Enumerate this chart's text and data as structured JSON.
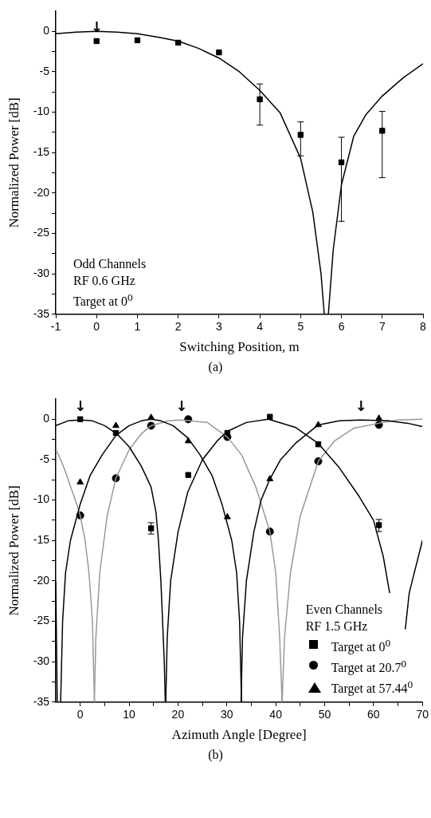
{
  "chart_data": [
    {
      "type": "scatter",
      "xlabel": "Switching Position, m",
      "ylabel": "Normalized Power [dB]",
      "xlim": [
        -1,
        8
      ],
      "xticks": [
        -1,
        0,
        1,
        2,
        3,
        4,
        5,
        6,
        7,
        8
      ],
      "ylim": [
        -35,
        2.5
      ],
      "yticks": [
        -35,
        {
          "value": -32.5,
          "label": null
        },
        -30,
        {
          "value": -27.5,
          "label": null
        },
        -25,
        {
          "value": -22.5,
          "label": null
        },
        -20,
        {
          "value": -17.5,
          "label": null
        },
        -15,
        {
          "value": -12.5,
          "label": null
        },
        -10,
        {
          "value": -7.5,
          "label": null
        },
        -5,
        {
          "value": -2.5,
          "label": null
        },
        0
      ],
      "series": [
        {
          "type": "line",
          "color": "#000000",
          "marker": "none",
          "x": [
            -1,
            -0.5,
            0,
            0.5,
            1,
            1.5,
            2,
            2.5,
            3,
            3.5,
            4,
            4.5,
            5,
            5.3,
            5.5,
            5.58,
            5.68,
            5.8,
            6,
            6.3,
            6.6,
            7,
            7.5,
            8
          ],
          "values": [
            -0.3,
            -0.1,
            0,
            -0.1,
            -0.3,
            -0.7,
            -1.2,
            -2.1,
            -3.3,
            -5,
            -7.3,
            -10.1,
            -15.7,
            -22.4,
            -30,
            -35,
            -35,
            -27,
            -19,
            -13,
            -10.3,
            -8,
            -5.8,
            -4
          ]
        },
        {
          "type": "scatter",
          "color": "#000000",
          "marker": "square",
          "x": [
            0,
            1,
            2,
            3,
            4,
            5,
            6,
            7
          ],
          "values": [
            -1.2,
            -1.1,
            -1.4,
            -2.6,
            -8.4,
            -12.8,
            -16.2,
            -12.3
          ],
          "errors": [
            null,
            null,
            null,
            null,
            [
              -11.6,
              -6.5
            ],
            [
              -15.4,
              -11.2
            ],
            [
              -23.5,
              -13.1
            ],
            [
              -18.1,
              -9.9
            ]
          ]
        }
      ],
      "annotations": [
        "Odd Channels",
        "RF 0.6 GHz",
        "Target at 0$^{0}$",
        {
          "text": "↓",
          "x": 0,
          "y": -1.2
        },
        "(a)"
      ]
    },
    {
      "type": "scatter",
      "xlabel": "Azimuth Angle [Degree]",
      "ylabel": "Normalized Power [dB]",
      "xlim": [
        -5,
        70
      ],
      "xticks": [
        0,
        {
          "value": 5,
          "label": null
        },
        10,
        {
          "value": 15,
          "label": null
        },
        20,
        {
          "value": 25,
          "label": null
        },
        30,
        {
          "value": 35,
          "label": null
        },
        40,
        {
          "value": 45,
          "label": null
        },
        50,
        {
          "value": 55,
          "label": null
        },
        60,
        {
          "value": 65,
          "label": null
        },
        70
      ],
      "ylim": [
        -35,
        2.5
      ],
      "yticks": [
        -35,
        {
          "value": -32.5,
          "label": null
        },
        -30,
        {
          "value": -27.5,
          "label": null
        },
        -25,
        {
          "value": -22.5,
          "label": null
        },
        -20,
        {
          "value": -17.5,
          "label": null
        },
        -15,
        {
          "value": -12.5,
          "label": null
        },
        -10,
        {
          "value": -7.5,
          "label": null
        },
        -5,
        {
          "value": -2.5,
          "label": null
        },
        0
      ],
      "legend": "bottom right",
      "series": [
        {
          "type": "line",
          "color": "#000000",
          "marker": "none",
          "x": [
            -5,
            -2.5,
            0,
            2.5,
            5,
            7.5,
            10,
            12.5,
            14.5,
            15.5,
            16,
            16.5,
            17.2,
            17.4
          ],
          "values": [
            -0.8,
            -0.2,
            -0.1,
            -0.2,
            -0.8,
            -1.8,
            -3.4,
            -5.8,
            -8.4,
            -11.5,
            -15,
            -20,
            -30,
            -35
          ]
        },
        {
          "type": "line",
          "color": "#000000",
          "marker": "none",
          "x": [
            -4,
            -3.6,
            -3,
            -2,
            0,
            2,
            4.5,
            7.3,
            10,
            12.5,
            14.5,
            16.5,
            19,
            22,
            24.5,
            27,
            29,
            31,
            32,
            32.6,
            33
          ],
          "values": [
            -35,
            -25,
            -19,
            -15,
            -10.5,
            -7,
            -4.4,
            -2,
            -0.8,
            -0.2,
            0,
            -0.2,
            -0.8,
            -2.3,
            -4.4,
            -7,
            -10.5,
            -15,
            -19,
            -25,
            -35
          ]
        },
        {
          "type": "line",
          "color": "#000000",
          "marker": "none",
          "x": [
            17.5,
            17.8,
            18.5,
            20,
            22,
            25,
            28,
            30.1,
            34,
            38.5,
            44,
            48.7,
            53,
            57,
            60,
            62,
            63.3
          ],
          "values": [
            -35,
            -27,
            -20,
            -14,
            -9,
            -5,
            -2.7,
            -1.5,
            -0.4,
            0,
            -1,
            -3,
            -6,
            -9.5,
            -12.5,
            -17,
            -21.5
          ]
        },
        {
          "type": "line",
          "color": "#000000",
          "marker": "none",
          "x": [
            32.9,
            33.2,
            34,
            35.5,
            37,
            38.8,
            41,
            44,
            48.7,
            53,
            57.44,
            63,
            67,
            70
          ],
          "values": [
            -35,
            -27,
            -20,
            -14,
            -10,
            -7.4,
            -5,
            -3,
            -0.7,
            -0.2,
            -0.1,
            -0.2,
            -0.5,
            -0.9
          ]
        },
        {
          "type": "line",
          "color": "#000000",
          "marker": "none",
          "x": [
            66.5,
            67.3,
            70
          ],
          "values": [
            -26,
            -21.5,
            -15
          ]
        },
        {
          "type": "line",
          "color": "#000000",
          "marker": "none",
          "x": [
            -5,
            -4.7
          ],
          "values": [
            -20,
            -35
          ]
        },
        {
          "type": "line",
          "color": "#999999",
          "marker": "none",
          "x": [
            -5,
            -4,
            -3,
            -2,
            -1,
            0,
            1,
            1.8,
            2.5,
            2.9
          ],
          "values": [
            -3.7,
            -5,
            -6.5,
            -8.3,
            -10,
            -11.9,
            -15,
            -19,
            -25,
            -35
          ]
        },
        {
          "type": "line",
          "color": "#999999",
          "marker": "none",
          "x": [
            2.9,
            3.2,
            4,
            5.5,
            7.3,
            10,
            12.5,
            14.5,
            18,
            20.7,
            26,
            30.1,
            33,
            36,
            38.8,
            40,
            40.8,
            41.3
          ],
          "values": [
            -35,
            -27,
            -19,
            -12,
            -7.3,
            -3.8,
            -1.8,
            -0.8,
            -0.2,
            -0.1,
            -0.4,
            -2.2,
            -4.4,
            -8.5,
            -13.9,
            -19,
            -27,
            -35
          ]
        },
        {
          "type": "line",
          "color": "#999999",
          "marker": "none",
          "x": [
            41.3,
            41.8,
            43,
            45,
            48.7,
            52,
            56,
            61.1,
            65,
            70
          ],
          "values": [
            -35,
            -27,
            -19,
            -12,
            -5.2,
            -2.7,
            -1.1,
            -0.5,
            -0.1,
            0
          ]
        },
        {
          "type": "scatter",
          "name": "Target at 0$^{0}$",
          "color": "#000000",
          "marker": "square",
          "x": [
            0,
            7.3,
            14.5,
            22.1,
            30.1,
            38.8,
            48.7,
            61.1
          ],
          "values": [
            0,
            -1.7,
            -13.5,
            -6.9,
            -1.7,
            0.3,
            -3.1,
            -13.1
          ],
          "errors": [
            null,
            null,
            [
              -14.2,
              -12.8
            ],
            null,
            null,
            null,
            null,
            [
              -13.9,
              -12.4
            ]
          ]
        },
        {
          "type": "scatter",
          "name": "Target at 20.7$^{0}$",
          "color": "#000000",
          "marker": "circle",
          "x": [
            0,
            7.3,
            14.5,
            22.1,
            30.1,
            38.8,
            48.7,
            61.1
          ],
          "values": [
            -11.9,
            -7.3,
            -0.8,
            0,
            -2.2,
            -13.9,
            -5.2,
            -0.7
          ]
        },
        {
          "type": "scatter",
          "name": "Target at 57.44$^{0}$",
          "color": "#000000",
          "marker": "triangle",
          "x": [
            0,
            7.3,
            14.5,
            22.1,
            30.1,
            38.8,
            48.7,
            61.1
          ],
          "values": [
            -7.8,
            -0.8,
            0.2,
            -2.7,
            -12.1,
            -7.4,
            -0.7,
            0.1
          ]
        }
      ],
      "annotations": [
        "Even Channels",
        "RF 1.5 GHz",
        {
          "text": "↓",
          "x": 0,
          "y": -0.1
        },
        {
          "text": "↓",
          "x": 20.7,
          "y": -0.1
        },
        {
          "text": "↓",
          "x": 57.44,
          "y": -0.1
        },
        "(b)"
      ]
    }
  ]
}
